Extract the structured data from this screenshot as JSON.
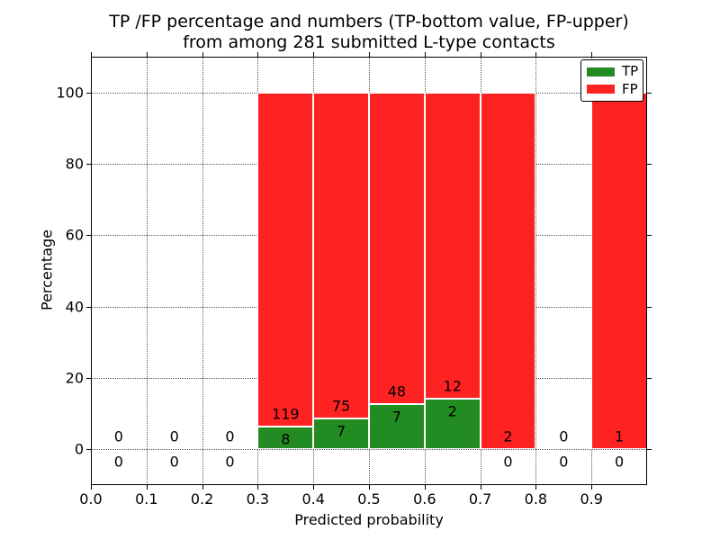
{
  "title": {
    "line1": "TP /FP percentage and numbers (TP-bottom value, FP-upper)",
    "line2": "from among 281 submitted L-type contacts"
  },
  "chart_data": {
    "type": "bar",
    "stacked": true,
    "normalized": "percent",
    "title": "TP /FP percentage and numbers (TP-bottom value, FP-upper)\nfrom among 281 submitted L-type contacts",
    "xlabel": "Predicted probability",
    "ylabel": "Percentage",
    "xlim": [
      0.0,
      1.0
    ],
    "ylim": [
      -10,
      110
    ],
    "x_ticks": [
      "0.0",
      "0.1",
      "0.2",
      "0.3",
      "0.4",
      "0.5",
      "0.6",
      "0.7",
      "0.8",
      "0.9"
    ],
    "y_ticks": [
      0,
      20,
      40,
      60,
      80,
      100
    ],
    "grid": "dotted",
    "legend": {
      "position": "upper-right",
      "entries": [
        {
          "label": "TP",
          "color": "#228B22"
        },
        {
          "label": "FP",
          "color": "#FF2222"
        }
      ]
    },
    "bins": [
      {
        "range": [
          0.0,
          0.1
        ],
        "tp": 0,
        "fp": 0
      },
      {
        "range": [
          0.1,
          0.2
        ],
        "tp": 0,
        "fp": 0
      },
      {
        "range": [
          0.2,
          0.3
        ],
        "tp": 0,
        "fp": 0
      },
      {
        "range": [
          0.3,
          0.4
        ],
        "tp": 8,
        "fp": 119
      },
      {
        "range": [
          0.4,
          0.5
        ],
        "tp": 7,
        "fp": 75
      },
      {
        "range": [
          0.5,
          0.6
        ],
        "tp": 7,
        "fp": 48
      },
      {
        "range": [
          0.6,
          0.7
        ],
        "tp": 2,
        "fp": 12
      },
      {
        "range": [
          0.7,
          0.8
        ],
        "tp": 0,
        "fp": 2
      },
      {
        "range": [
          0.8,
          0.9
        ],
        "tp": 0,
        "fp": 0
      },
      {
        "range": [
          0.9,
          1.0
        ],
        "tp": 0,
        "fp": 1
      }
    ]
  },
  "colors": {
    "tp": "#228B22",
    "fp": "#FF2222",
    "grid": "#555555",
    "axis": "#000000",
    "bar_edge": "#ffffff",
    "background": "#ffffff"
  }
}
